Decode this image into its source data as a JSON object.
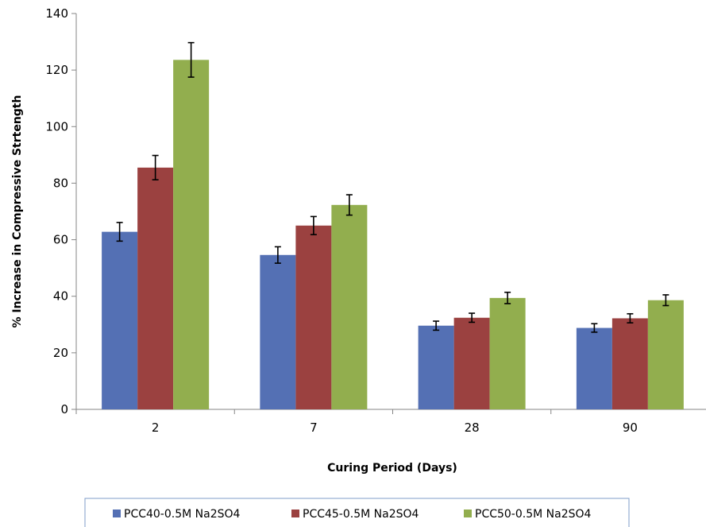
{
  "chart_data": {
    "type": "bar",
    "title": "",
    "xlabel": "Curing Period (Days)",
    "ylabel": "% Increase in Compressive Strtength",
    "categories": [
      "2",
      "7",
      "28",
      "90"
    ],
    "ylim": [
      0,
      140
    ],
    "yticks": [
      0,
      20,
      40,
      60,
      80,
      100,
      120,
      140
    ],
    "grid": false,
    "legend_position": "bottom",
    "series": [
      {
        "name": "PCC40-0.5M Na2SO4",
        "color": "#5470B4",
        "values": [
          62.8,
          54.6,
          29.6,
          28.8
        ],
        "errors": [
          3.3,
          2.9,
          1.6,
          1.5
        ]
      },
      {
        "name": "PCC45-0.5M Na2SO4",
        "color": "#9B4140",
        "values": [
          85.5,
          65.0,
          32.4,
          32.2
        ],
        "errors": [
          4.3,
          3.2,
          1.6,
          1.6
        ]
      },
      {
        "name": "PCC50-0.5M Na2SO4",
        "color": "#92AE4E",
        "values": [
          123.6,
          72.3,
          39.4,
          38.6
        ],
        "errors": [
          6.1,
          3.6,
          2.0,
          1.9
        ]
      }
    ]
  }
}
